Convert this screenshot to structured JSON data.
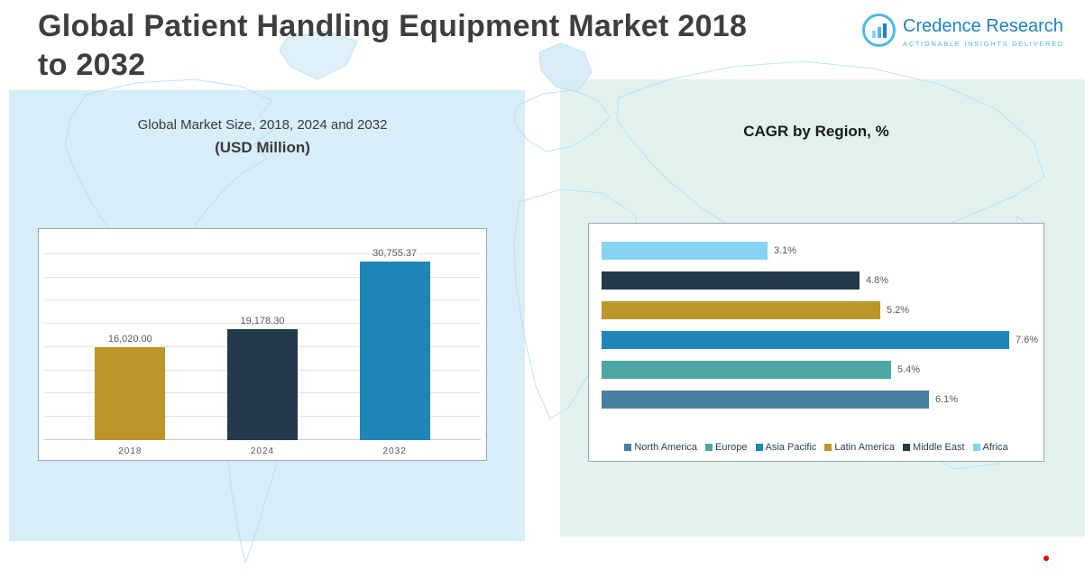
{
  "header": {
    "title_line1": "Global Patient Handling Equipment Market 2018",
    "title_line2": "to 2032"
  },
  "logo": {
    "brand": "Credence Research",
    "tagline": "Actionable Insights Delivered"
  },
  "market_chart": {
    "subtitle": "Global Market Size, 2018, 2024 and 2032",
    "unit": "(USD Million)"
  },
  "cagr_chart": {
    "title": "CAGR by Region, %"
  },
  "chart_data": [
    {
      "type": "bar",
      "title": "Global Market Size, 2018, 2024 and 2032 (USD Million)",
      "categories": [
        "2018",
        "2024",
        "2032"
      ],
      "values": [
        16020.0,
        19178.3,
        30755.37
      ],
      "value_labels": [
        "16,020.00",
        "19,178.30",
        "30,755.37"
      ],
      "bar_colors": [
        "#BC9628",
        "#223A49",
        "#1E86B8"
      ],
      "ylabel": "USD Million",
      "ylim": [
        0,
        32000
      ],
      "grid": true,
      "legend_position": "none"
    },
    {
      "type": "bar",
      "orientation": "horizontal",
      "title": "CAGR by Region, %",
      "categories": [
        "Africa",
        "Middle East",
        "Latin America",
        "Asia Pacific",
        "Europe",
        "North America"
      ],
      "values": [
        3.1,
        4.8,
        5.2,
        7.6,
        5.4,
        6.1
      ],
      "value_labels": [
        "3.1%",
        "4.8%",
        "5.2%",
        "7.6%",
        "5.4%",
        "6.1%"
      ],
      "bar_colors": [
        "#86D3F2",
        "#223A49",
        "#BC9628",
        "#1E86B8",
        "#4CA7A3",
        "#47809F"
      ],
      "xlim": [
        0,
        8
      ],
      "grid": false,
      "legend_position": "bottom",
      "legend": [
        {
          "label": "North America",
          "color": "#47809F"
        },
        {
          "label": "Europe",
          "color": "#4CA7A3"
        },
        {
          "label": "Asia Pacific",
          "color": "#1E86B8"
        },
        {
          "label": "Latin America",
          "color": "#BC9628"
        },
        {
          "label": "Middle East",
          "color": "#223A49"
        },
        {
          "label": "Africa",
          "color": "#86D3F2"
        }
      ]
    }
  ],
  "misc": {
    "red_dot_color": "#E00000"
  }
}
